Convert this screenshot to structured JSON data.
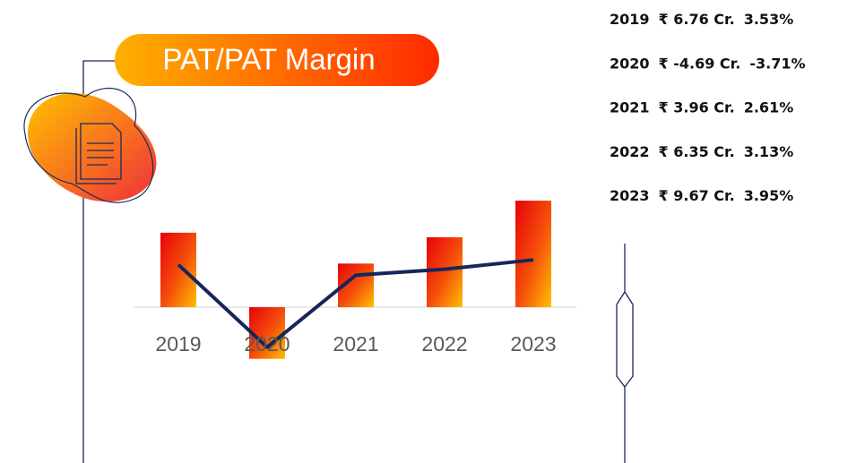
{
  "chart_data": {
    "type": "bar",
    "title": "PAT/PAT Margin",
    "categories": [
      "2019",
      "2020",
      "2021",
      "2022",
      "2023"
    ],
    "series": [
      {
        "color": "#f03a0a",
        "values": [
          6.76,
          -4.69,
          3.96,
          6.35,
          9.67
        ],
        "value_labels": [
          "₹ 6.76 Cr.",
          "₹ -4.69 Cr.",
          "₹ 3.96 Cr.",
          "₹ 6.35 Cr.",
          "₹ 9.67 Cr."
        ]
      },
      {
        "type": "line",
        "axis": "y2",
        "color": "#15265a",
        "values": [
          3.53,
          -3.71,
          2.61,
          3.13,
          3.95
        ],
        "value_labels": [
          "3.53%",
          "-3.71%",
          "2.61%",
          "3.13%",
          "3.95%"
        ]
      }
    ],
    "ylim": [
      -6,
      12
    ],
    "y2lim": [
      -6,
      11.4
    ],
    "grid": false
  }
}
